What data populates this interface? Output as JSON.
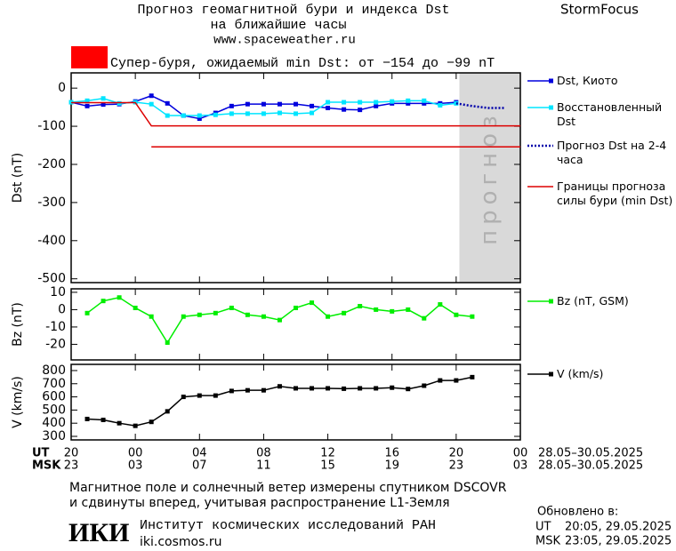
{
  "header": {
    "title": "Прогноз геомагнитной бури и индекса Dst",
    "subtitle": "на ближайшие часы",
    "url": "www.spaceweather.ru",
    "brand": "StormFocus"
  },
  "alert": {
    "color": "#ff0000",
    "text": "Супер-буря, ожидаемый min Dst: от −154 до −99 nT"
  },
  "time_axis": {
    "xlim": [
      0,
      28
    ],
    "ut_label": "UT",
    "msk_label": "MSK",
    "ut_ticks": [
      {
        "value": 0,
        "label": "20"
      },
      {
        "value": 4,
        "label": "00"
      },
      {
        "value": 8,
        "label": "04"
      },
      {
        "value": 12,
        "label": "08"
      },
      {
        "value": 16,
        "label": "12"
      },
      {
        "value": 20,
        "label": "16"
      },
      {
        "value": 24,
        "label": "20"
      },
      {
        "value": 28,
        "label": "00"
      }
    ],
    "msk_tick_labels": [
      "23",
      "03",
      "07",
      "11",
      "15",
      "19",
      "23",
      "03"
    ],
    "ut_range": "28.05–30.05.2025",
    "msk_range": "28.05–30.05.2025"
  },
  "chart_data": [
    {
      "type": "line",
      "ylabel": "Dst (nT)",
      "ylim": [
        -510,
        40
      ],
      "yticks": [
        0,
        -100,
        -200,
        -300,
        -400,
        -500
      ],
      "forecast_region": {
        "x": [
          24.2,
          28
        ],
        "color": "#d9d9d9",
        "label": "прогноз"
      },
      "series": [
        {
          "name": "Dst, Киото",
          "color": "#0000dd",
          "marker": "square",
          "x": [
            0,
            1,
            2,
            3,
            4,
            5,
            6,
            7,
            8,
            9,
            10,
            11,
            12,
            13,
            14,
            15,
            16,
            17,
            18,
            19,
            20,
            21,
            22,
            23,
            24
          ],
          "values": [
            -37,
            -47,
            -43,
            -42,
            -35,
            -20,
            -40,
            -72,
            -80,
            -65,
            -47,
            -42,
            -42,
            -42,
            -42,
            -47,
            -52,
            -56,
            -57,
            -47,
            -40,
            -40,
            -40,
            -40,
            -37
          ]
        },
        {
          "name": "Восстановленный Dst",
          "color": "#00e5ff",
          "marker": "square",
          "x": [
            0,
            1,
            2,
            3,
            4,
            5,
            6,
            7,
            8,
            9,
            10,
            11,
            12,
            13,
            14,
            15,
            16,
            17,
            18,
            19,
            20,
            21,
            22,
            23,
            24
          ],
          "values": [
            -37,
            -33,
            -27,
            -40,
            -37,
            -42,
            -72,
            -72,
            -72,
            -70,
            -67,
            -67,
            -67,
            -65,
            -67,
            -65,
            -37,
            -37,
            -37,
            -37,
            -35,
            -33,
            -33,
            -45,
            -40
          ]
        },
        {
          "name": "Прогноз Dst на 2-4 часа",
          "color": "#0000aa",
          "dash": "dotted",
          "x": [
            24,
            25,
            26,
            27
          ],
          "values": [
            -40,
            -47,
            -52,
            -52
          ]
        },
        {
          "name": "Границы прогноза силы бури (min Dst)",
          "color": "#dd0000",
          "x": [
            0,
            4,
            5,
            28
          ],
          "values": [
            -38,
            -38,
            -99,
            -99
          ]
        },
        {
          "color": "#dd0000",
          "x": [
            5,
            28
          ],
          "values": [
            -154,
            -154
          ]
        }
      ]
    },
    {
      "type": "line",
      "ylabel": "Bz (nT)",
      "ylim": [
        -29,
        12
      ],
      "yticks": [
        10,
        0,
        -10,
        -20
      ],
      "series": [
        {
          "name": "Bz (nT, GSM)",
          "color": "#00ee00",
          "marker": "square",
          "x": [
            1,
            2,
            3,
            4,
            5,
            6,
            7,
            8,
            9,
            10,
            11,
            12,
            13,
            14,
            15,
            16,
            17,
            18,
            19,
            20,
            21,
            22,
            23,
            24,
            25
          ],
          "values": [
            -2,
            5,
            7,
            1,
            -4,
            -19,
            -4,
            -3,
            -2,
            1,
            -3,
            -4,
            -6,
            1,
            4,
            -4,
            -2,
            2,
            0,
            -1,
            0,
            -5,
            3,
            -3,
            -4
          ]
        }
      ]
    },
    {
      "type": "line",
      "ylabel": "V (km/s)",
      "ylim": [
        273,
        847
      ],
      "yticks": [
        800,
        700,
        600,
        500,
        400,
        300
      ],
      "series": [
        {
          "name": "V (km/s)",
          "color": "#000000",
          "marker": "square",
          "x": [
            1,
            2,
            3,
            4,
            5,
            6,
            7,
            8,
            9,
            10,
            11,
            12,
            13,
            14,
            15,
            16,
            17,
            18,
            19,
            20,
            21,
            22,
            23,
            24,
            25
          ],
          "values": [
            432,
            425,
            400,
            380,
            410,
            490,
            600,
            610,
            610,
            645,
            650,
            650,
            680,
            665,
            665,
            665,
            662,
            665,
            665,
            670,
            660,
            685,
            725,
            725,
            750
          ]
        }
      ]
    }
  ],
  "footer": {
    "note_line1": "Магнитное поле и солнечный ветер измерены спутником DSCOVR",
    "note_line2": "и сдвинуты вперед, учитывая распространение L1-Земля",
    "logo": "ИКИ",
    "institute": "Институт космических исследований РАН",
    "site": "iki.cosmos.ru",
    "updated_label": "Обновлено в:",
    "updated_ut_label": "UT",
    "updated_ut": "20:05, 29.05.2025",
    "updated_msk_label": "MSK",
    "updated_msk": "23:05, 29.05.2025"
  }
}
